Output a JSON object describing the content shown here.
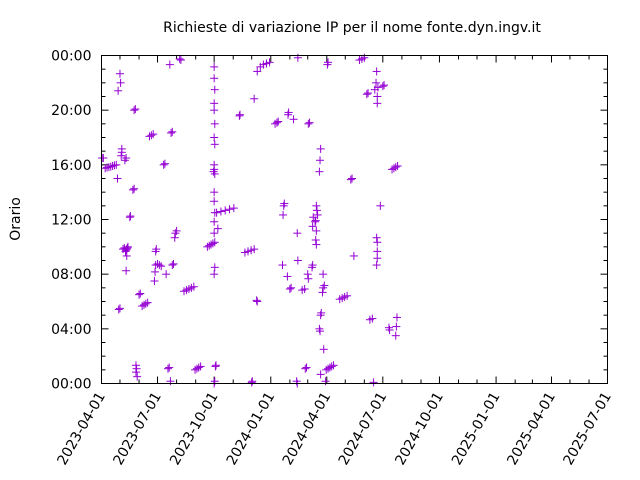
{
  "chart_data": {
    "type": "scatter",
    "title": "Richieste di variazione IP per il nome fonte.dyn.ingv.it",
    "xlabel": "",
    "ylabel": "Orario",
    "xlim": [
      "2023-04-01",
      "2025-07-01"
    ],
    "ylim": [
      "00:00",
      "24:00"
    ],
    "x_ticks": [
      "2023-04-01",
      "2023-07-01",
      "2023-10-01",
      "2024-01-01",
      "2024-04-01",
      "2024-07-01",
      "2024-10-01",
      "2025-01-01",
      "2025-04-01",
      "2025-07-01"
    ],
    "y_ticks": [
      "00:00",
      "04:00",
      "08:00",
      "12:00",
      "16:00",
      "20:00",
      "00:00"
    ],
    "grid": false,
    "marker": "+",
    "color": "#9400d3",
    "points": [
      [
        "2023-04-02",
        "16:30"
      ],
      [
        "2023-04-04",
        "16:30"
      ],
      [
        "2023-04-07",
        "15:45"
      ],
      [
        "2023-04-10",
        "15:48"
      ],
      [
        "2023-04-13",
        "15:50"
      ],
      [
        "2023-04-16",
        "15:52"
      ],
      [
        "2023-04-19",
        "15:55"
      ],
      [
        "2023-04-22",
        "15:58"
      ],
      [
        "2023-04-25",
        "16:00"
      ],
      [
        "2023-04-27",
        "15:00"
      ],
      [
        "2023-04-28",
        "21:25"
      ],
      [
        "2023-04-29",
        "05:25"
      ],
      [
        "2023-05-01",
        "05:30"
      ],
      [
        "2023-05-01",
        "22:40"
      ],
      [
        "2023-05-02",
        "22:00"
      ],
      [
        "2023-05-03",
        "16:40"
      ],
      [
        "2023-05-04",
        "17:10"
      ],
      [
        "2023-05-04",
        "16:55"
      ],
      [
        "2023-05-06",
        "09:50"
      ],
      [
        "2023-05-08",
        "09:55"
      ],
      [
        "2023-05-09",
        "16:20"
      ],
      [
        "2023-05-11",
        "16:30"
      ],
      [
        "2023-05-10",
        "09:40"
      ],
      [
        "2023-05-11",
        "09:45"
      ],
      [
        "2023-05-12",
        "09:50"
      ],
      [
        "2023-05-13",
        "09:55"
      ],
      [
        "2023-05-14",
        "10:00"
      ],
      [
        "2023-05-11",
        "08:15"
      ],
      [
        "2023-05-12",
        "09:20"
      ],
      [
        "2023-05-17",
        "12:10"
      ],
      [
        "2023-05-18",
        "12:15"
      ],
      [
        "2023-05-22",
        "14:10"
      ],
      [
        "2023-05-24",
        "14:15"
      ],
      [
        "2023-05-24",
        "20:00"
      ],
      [
        "2023-05-26",
        "20:05"
      ],
      [
        "2023-05-27",
        "01:20"
      ],
      [
        "2023-05-28",
        "01:05"
      ],
      [
        "2023-05-29",
        "00:30"
      ],
      [
        "2023-05-27",
        "00:50"
      ],
      [
        "2023-06-01",
        "06:30"
      ],
      [
        "2023-06-03",
        "06:35"
      ],
      [
        "2023-06-06",
        "05:40"
      ],
      [
        "2023-06-09",
        "05:45"
      ],
      [
        "2023-06-12",
        "05:50"
      ],
      [
        "2023-06-15",
        "05:55"
      ],
      [
        "2023-06-18",
        "18:05"
      ],
      [
        "2023-06-21",
        "18:10"
      ],
      [
        "2023-06-24",
        "18:15"
      ],
      [
        "2023-06-26",
        "07:30"
      ],
      [
        "2023-06-27",
        "08:10"
      ],
      [
        "2023-06-28",
        "09:40"
      ],
      [
        "2023-06-29",
        "09:50"
      ],
      [
        "2023-06-28",
        "08:40"
      ],
      [
        "2023-07-01",
        "08:45"
      ],
      [
        "2023-07-04",
        "08:40"
      ],
      [
        "2023-07-07",
        "08:35"
      ],
      [
        "2023-07-11",
        "16:00"
      ],
      [
        "2023-07-13",
        "16:05"
      ],
      [
        "2023-07-15",
        "08:00"
      ],
      [
        "2023-07-18",
        "01:05"
      ],
      [
        "2023-07-20",
        "01:10"
      ],
      [
        "2023-07-21",
        "23:20"
      ],
      [
        "2023-07-22",
        "00:10"
      ],
      [
        "2023-07-23",
        "18:20"
      ],
      [
        "2023-07-25",
        "18:25"
      ],
      [
        "2023-07-25",
        "08:40"
      ],
      [
        "2023-07-27",
        "08:45"
      ],
      [
        "2023-07-29",
        "10:40"
      ],
      [
        "2023-07-30",
        "11:00"
      ],
      [
        "2023-08-01",
        "11:10"
      ],
      [
        "2023-08-06",
        "23:45"
      ],
      [
        "2023-08-08",
        "23:40"
      ],
      [
        "2023-08-13",
        "06:45"
      ],
      [
        "2023-08-17",
        "06:50"
      ],
      [
        "2023-08-21",
        "06:55"
      ],
      [
        "2023-08-25",
        "07:00"
      ],
      [
        "2023-08-29",
        "07:05"
      ],
      [
        "2023-08-31",
        "01:00"
      ],
      [
        "2023-09-03",
        "01:05"
      ],
      [
        "2023-09-06",
        "01:10"
      ],
      [
        "2023-09-09",
        "01:15"
      ],
      [
        "2023-09-20",
        "10:00"
      ],
      [
        "2023-09-23",
        "10:05"
      ],
      [
        "2023-09-26",
        "10:10"
      ],
      [
        "2023-09-29",
        "10:15"
      ],
      [
        "2023-09-30",
        "15:30"
      ],
      [
        "2023-10-01",
        "15:40"
      ],
      [
        "2023-10-02",
        "15:20"
      ],
      [
        "2023-10-01",
        "16:00"
      ],
      [
        "2023-10-01",
        "22:20"
      ],
      [
        "2023-10-01",
        "23:10"
      ],
      [
        "2023-10-02",
        "21:30"
      ],
      [
        "2023-10-01",
        "20:30"
      ],
      [
        "2023-10-01",
        "20:00"
      ],
      [
        "2023-10-02",
        "19:00"
      ],
      [
        "2023-10-01",
        "18:00"
      ],
      [
        "2023-10-02",
        "17:30"
      ],
      [
        "2023-10-01",
        "14:00"
      ],
      [
        "2023-10-01",
        "13:20"
      ],
      [
        "2023-10-02",
        "12:30"
      ],
      [
        "2023-10-01",
        "11:50"
      ],
      [
        "2023-10-01",
        "11:00"
      ],
      [
        "2023-10-02",
        "10:20"
      ],
      [
        "2023-10-02",
        "08:30"
      ],
      [
        "2023-10-01",
        "08:00"
      ],
      [
        "2023-10-01",
        "00:00"
      ],
      [
        "2023-10-02",
        "00:10"
      ],
      [
        "2023-10-07",
        "11:20"
      ],
      [
        "2023-10-03",
        "01:15"
      ],
      [
        "2023-10-04",
        "01:20"
      ],
      [
        "2023-10-05",
        "12:30"
      ],
      [
        "2023-10-12",
        "12:35"
      ],
      [
        "2023-10-19",
        "12:40"
      ],
      [
        "2023-10-26",
        "12:45"
      ],
      [
        "2023-11-02",
        "12:50"
      ],
      [
        "2023-11-11",
        "19:35"
      ],
      [
        "2023-11-12",
        "19:40"
      ],
      [
        "2023-11-20",
        "09:35"
      ],
      [
        "2023-11-25",
        "09:40"
      ],
      [
        "2023-11-30",
        "09:45"
      ],
      [
        "2023-12-05",
        "09:50"
      ],
      [
        "2023-12-01",
        "00:05"
      ],
      [
        "2023-12-02",
        "00:10"
      ],
      [
        "2023-12-05",
        "20:50"
      ],
      [
        "2023-12-09",
        "06:05"
      ],
      [
        "2023-12-10",
        "06:00"
      ],
      [
        "2023-12-10",
        "22:50"
      ],
      [
        "2023-12-15",
        "23:10"
      ],
      [
        "2023-12-20",
        "23:20"
      ],
      [
        "2023-12-25",
        "23:25"
      ],
      [
        "2023-12-30",
        "23:30"
      ],
      [
        "2024-01-08",
        "19:00"
      ],
      [
        "2024-01-11",
        "19:05"
      ],
      [
        "2024-01-13",
        "19:10"
      ],
      [
        "2024-01-20",
        "08:40"
      ],
      [
        "2024-01-21",
        "12:20"
      ],
      [
        "2024-01-22",
        "13:00"
      ],
      [
        "2024-01-23",
        "13:10"
      ],
      [
        "2024-01-28",
        "07:50"
      ],
      [
        "2024-01-29",
        "19:40"
      ],
      [
        "2024-01-30",
        "19:50"
      ],
      [
        "2024-02-01",
        "06:55"
      ],
      [
        "2024-02-03",
        "07:00"
      ],
      [
        "2024-02-07",
        "19:20"
      ],
      [
        "2024-02-12",
        "00:10"
      ],
      [
        "2024-02-13",
        "00:00"
      ],
      [
        "2024-02-14",
        "23:50"
      ],
      [
        "2024-02-13",
        "11:00"
      ],
      [
        "2024-02-14",
        "09:00"
      ],
      [
        "2024-02-21",
        "06:50"
      ],
      [
        "2024-02-25",
        "06:55"
      ],
      [
        "2024-02-26",
        "01:05"
      ],
      [
        "2024-02-28",
        "01:10"
      ],
      [
        "2024-03-01",
        "08:00"
      ],
      [
        "2024-03-02",
        "07:40"
      ],
      [
        "2024-03-02",
        "19:00"
      ],
      [
        "2024-03-04",
        "19:05"
      ],
      [
        "2024-03-08",
        "08:30"
      ],
      [
        "2024-03-09",
        "08:40"
      ],
      [
        "2024-03-09",
        "11:30"
      ],
      [
        "2024-03-10",
        "12:10"
      ],
      [
        "2024-03-13",
        "11:50"
      ],
      [
        "2024-03-14",
        "11:55"
      ],
      [
        "2024-03-15",
        "11:10"
      ],
      [
        "2024-03-15",
        "10:10"
      ],
      [
        "2024-03-15",
        "13:00"
      ],
      [
        "2024-03-16",
        "12:40"
      ],
      [
        "2024-03-17",
        "12:20"
      ],
      [
        "2024-03-14",
        "10:30"
      ],
      [
        "2024-03-20",
        "04:00"
      ],
      [
        "2024-03-21",
        "03:50"
      ],
      [
        "2024-03-20",
        "15:30"
      ],
      [
        "2024-03-21",
        "16:20"
      ],
      [
        "2024-03-22",
        "17:10"
      ],
      [
        "2024-03-22",
        "00:40"
      ],
      [
        "2024-03-22",
        "05:00"
      ],
      [
        "2024-03-23",
        "05:10"
      ],
      [
        "2024-03-25",
        "06:40"
      ],
      [
        "2024-03-26",
        "07:00"
      ],
      [
        "2024-03-26",
        "08:00"
      ],
      [
        "2024-03-28",
        "07:10"
      ],
      [
        "2024-03-27",
        "02:30"
      ],
      [
        "2024-03-30",
        "00:10"
      ],
      [
        "2024-03-31",
        "01:00"
      ],
      [
        "2024-04-03",
        "01:05"
      ],
      [
        "2024-04-06",
        "01:10"
      ],
      [
        "2024-04-09",
        "01:15"
      ],
      [
        "2024-04-12",
        "01:20"
      ],
      [
        "2024-04-02",
        "23:20"
      ],
      [
        "2024-04-03",
        "23:30"
      ],
      [
        "2024-04-22",
        "06:10"
      ],
      [
        "2024-04-26",
        "06:15"
      ],
      [
        "2024-04-30",
        "06:20"
      ],
      [
        "2024-05-04",
        "06:25"
      ],
      [
        "2024-05-10",
        "14:55"
      ],
      [
        "2024-05-12",
        "15:00"
      ],
      [
        "2024-05-15",
        "09:20"
      ],
      [
        "2024-05-24",
        "23:40"
      ],
      [
        "2024-05-28",
        "23:45"
      ],
      [
        "2024-06-01",
        "23:50"
      ],
      [
        "2024-06-05",
        "21:10"
      ],
      [
        "2024-06-07",
        "21:15"
      ],
      [
        "2024-06-10",
        "04:40"
      ],
      [
        "2024-06-14",
        "04:45"
      ],
      [
        "2024-06-16",
        "00:05"
      ],
      [
        "2024-06-18",
        "21:30"
      ],
      [
        "2024-06-20",
        "22:00"
      ],
      [
        "2024-06-22",
        "21:00"
      ],
      [
        "2024-06-21",
        "10:40"
      ],
      [
        "2024-06-22",
        "10:20"
      ],
      [
        "2024-06-22",
        "09:40"
      ],
      [
        "2024-06-22",
        "09:10"
      ],
      [
        "2024-06-21",
        "08:40"
      ],
      [
        "2024-06-21",
        "22:50"
      ],
      [
        "2024-06-22",
        "20:30"
      ],
      [
        "2024-06-23",
        "21:40"
      ],
      [
        "2024-06-27",
        "13:00"
      ],
      [
        "2024-07-01",
        "21:45"
      ],
      [
        "2024-07-03",
        "21:50"
      ],
      [
        "2024-07-11",
        "04:05"
      ],
      [
        "2024-07-12",
        "03:55"
      ],
      [
        "2024-07-16",
        "15:40"
      ],
      [
        "2024-07-19",
        "15:45"
      ],
      [
        "2024-07-22",
        "15:50"
      ],
      [
        "2024-07-25",
        "15:55"
      ],
      [
        "2024-07-22",
        "03:30"
      ],
      [
        "2024-07-23",
        "04:10"
      ],
      [
        "2024-07-24",
        "04:50"
      ]
    ]
  }
}
